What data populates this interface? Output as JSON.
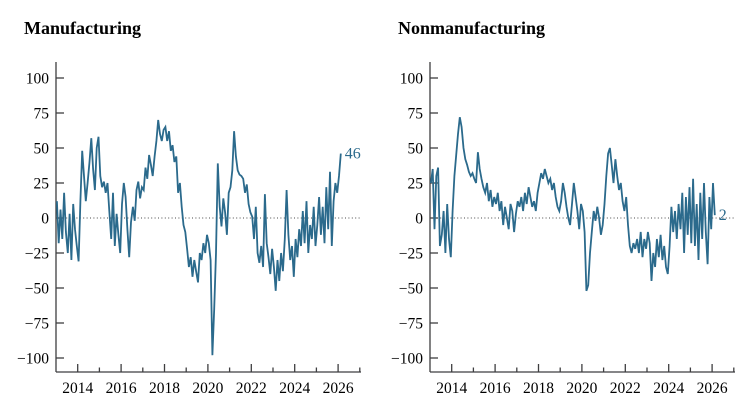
{
  "chart_data": [
    {
      "type": "line",
      "title": "Manufacturing",
      "ylim": [
        -100,
        100
      ],
      "x_range": [
        2013,
        2027
      ],
      "grid": "off",
      "zero_line": "dotted",
      "line_color": "#2b6a8c",
      "end_label": "46",
      "yticks": [
        100,
        75,
        50,
        25,
        0,
        -25,
        -50,
        -75,
        -100
      ],
      "ytick_labels": [
        "100",
        "75",
        "50",
        "25",
        "0",
        "−25",
        "−50",
        "−75",
        "−100"
      ],
      "xticks_major": [
        2014,
        2016,
        2018,
        2020,
        2022,
        2024,
        2026
      ],
      "xticks_minor": [
        2015,
        2017,
        2019,
        2021,
        2023,
        2025,
        2027
      ],
      "xtick_labels": [
        "2014",
        "2016",
        "2018",
        "2020",
        "2022",
        "2024",
        "2026"
      ],
      "series": [
        {
          "name": "Manufacturing index",
          "frequency": "monthly",
          "start": "2013-01",
          "values": [
            12,
            -18,
            6,
            -15,
            18,
            -10,
            -25,
            3,
            -30,
            10,
            -8,
            -20,
            -31,
            12,
            48,
            30,
            12,
            25,
            40,
            57,
            35,
            20,
            50,
            58,
            30,
            22,
            26,
            18,
            25,
            5,
            -15,
            18,
            -20,
            3,
            -12,
            -25,
            10,
            25,
            15,
            -8,
            -28,
            -3,
            8,
            -2,
            20,
            26,
            14,
            22,
            20,
            36,
            28,
            45,
            38,
            30,
            44,
            55,
            70,
            60,
            55,
            63,
            65,
            55,
            62,
            48,
            52,
            40,
            44,
            18,
            25,
            8,
            -5,
            -10,
            -22,
            -35,
            -28,
            -42,
            -30,
            -38,
            -46,
            -25,
            -30,
            -18,
            -25,
            -12,
            -18,
            -30,
            -98,
            -65,
            -25,
            39,
            8,
            -6,
            14,
            4,
            -12,
            18,
            22,
            34,
            62,
            44,
            34,
            31,
            30,
            28,
            18,
            24,
            10,
            4,
            1,
            -15,
            8,
            -25,
            -32,
            -20,
            -35,
            17,
            -18,
            -28,
            -40,
            -22,
            -35,
            -52,
            -30,
            -45,
            -25,
            -38,
            -15,
            20,
            -12,
            -30,
            -20,
            -42,
            -15,
            -28,
            -8,
            -20,
            5,
            -18,
            12,
            -25,
            -5,
            -15,
            8,
            -20,
            -5,
            15,
            -12,
            8,
            -18,
            22,
            -8,
            33,
            -20,
            12,
            25,
            18,
            30,
            46
          ]
        }
      ]
    },
    {
      "type": "line",
      "title": "Nonmanufacturing",
      "ylim": [
        -100,
        100
      ],
      "x_range": [
        2013,
        2027
      ],
      "grid": "off",
      "zero_line": "dotted",
      "line_color": "#2b6a8c",
      "end_label": "2",
      "yticks": [
        100,
        75,
        50,
        25,
        0,
        -25,
        -50,
        -75,
        -100
      ],
      "ytick_labels": [
        "100",
        "75",
        "50",
        "25",
        "0",
        "−25",
        "−50",
        "−75",
        "−100"
      ],
      "xticks_major": [
        2014,
        2016,
        2018,
        2020,
        2022,
        2024,
        2026
      ],
      "xticks_minor": [
        2015,
        2017,
        2019,
        2021,
        2023,
        2025,
        2027
      ],
      "xtick_labels": [
        "2014",
        "2016",
        "2018",
        "2020",
        "2022",
        "2024",
        "2026"
      ],
      "series": [
        {
          "name": "Nonmanufacturing index",
          "frequency": "monthly",
          "start": "2013-01",
          "values": [
            25,
            35,
            -8,
            30,
            36,
            -20,
            -12,
            5,
            -25,
            10,
            -15,
            -28,
            5,
            30,
            45,
            60,
            72,
            65,
            50,
            42,
            38,
            33,
            30,
            32,
            28,
            25,
            47,
            35,
            28,
            22,
            18,
            25,
            12,
            20,
            8,
            15,
            10,
            18,
            5,
            12,
            -5,
            8,
            0,
            -8,
            10,
            5,
            -10,
            3,
            12,
            8,
            15,
            5,
            18,
            10,
            22,
            15,
            8,
            12,
            5,
            18,
            25,
            32,
            28,
            35,
            30,
            25,
            28,
            20,
            25,
            15,
            8,
            5,
            12,
            25,
            18,
            8,
            0,
            -5,
            10,
            25,
            15,
            5,
            -8,
            10,
            5,
            -10,
            -52,
            -48,
            -25,
            -10,
            5,
            -2,
            8,
            0,
            -12,
            -5,
            10,
            30,
            46,
            50,
            38,
            25,
            42,
            30,
            20,
            25,
            12,
            5,
            15,
            -5,
            -20,
            -25,
            -18,
            -22,
            -15,
            -25,
            -10,
            -28,
            -15,
            -22,
            -10,
            -18,
            -45,
            -25,
            -35,
            -15,
            -28,
            -12,
            -30,
            -20,
            -35,
            -40,
            -20,
            8,
            -10,
            5,
            -15,
            10,
            -8,
            18,
            -25,
            15,
            -12,
            22,
            -18,
            28,
            -20,
            10,
            -30,
            18,
            -15,
            25,
            -10,
            -33,
            15,
            -8,
            25,
            2
          ]
        }
      ]
    }
  ]
}
